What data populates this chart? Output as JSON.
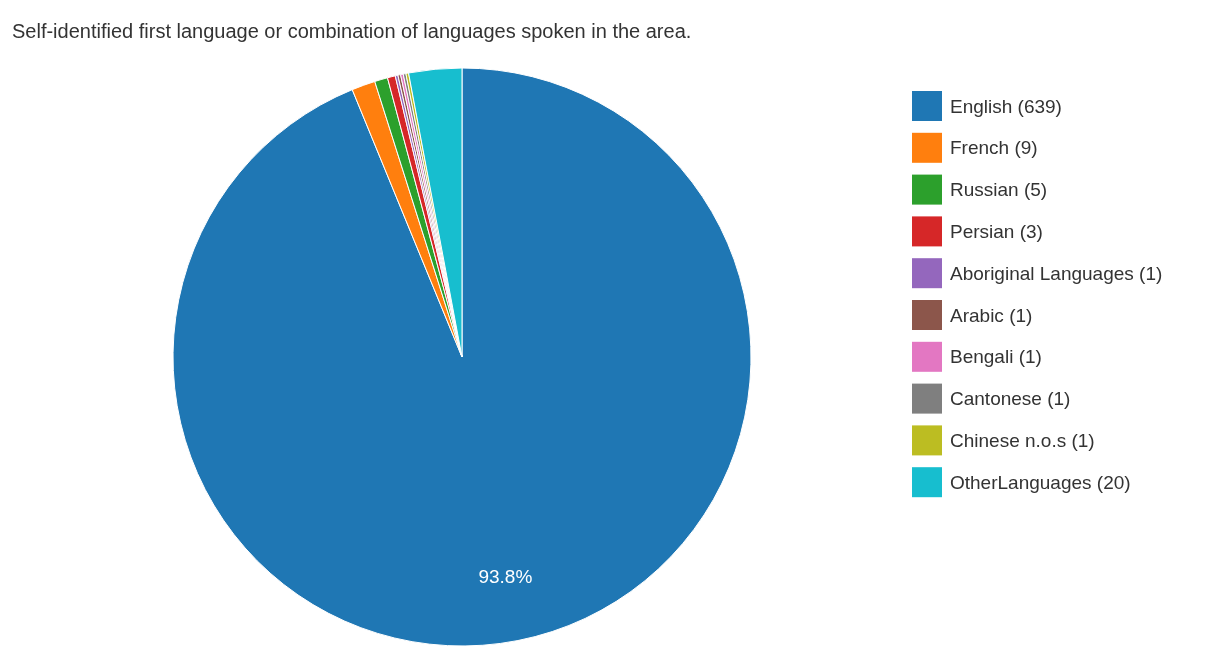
{
  "chart_data": {
    "type": "pie",
    "title": "Self-identified first language or combination of languages spoken in the area.",
    "categories": [
      "English (639)",
      "French (9)",
      "Russian (5)",
      "Persian (3)",
      "Aboriginal Languages (1)",
      "Arabic (1)",
      "Bengali (1)",
      "Cantonese (1)",
      "Chinese n.o.s (1)",
      "OtherLanguages (20)"
    ],
    "values": [
      93.8,
      1.32,
      0.73,
      0.44,
      0.15,
      0.15,
      0.15,
      0.15,
      0.15,
      2.96
    ],
    "colors": [
      "#1f77b4",
      "#ff7f0e",
      "#2ca02c",
      "#d62728",
      "#9467bd",
      "#8c564b",
      "#e377c2",
      "#7f7f7f",
      "#bcbd22",
      "#17becf"
    ],
    "value_labels": [
      "93.8%",
      null,
      null,
      null,
      null,
      null,
      null,
      null,
      null,
      null
    ],
    "legend": "right"
  }
}
